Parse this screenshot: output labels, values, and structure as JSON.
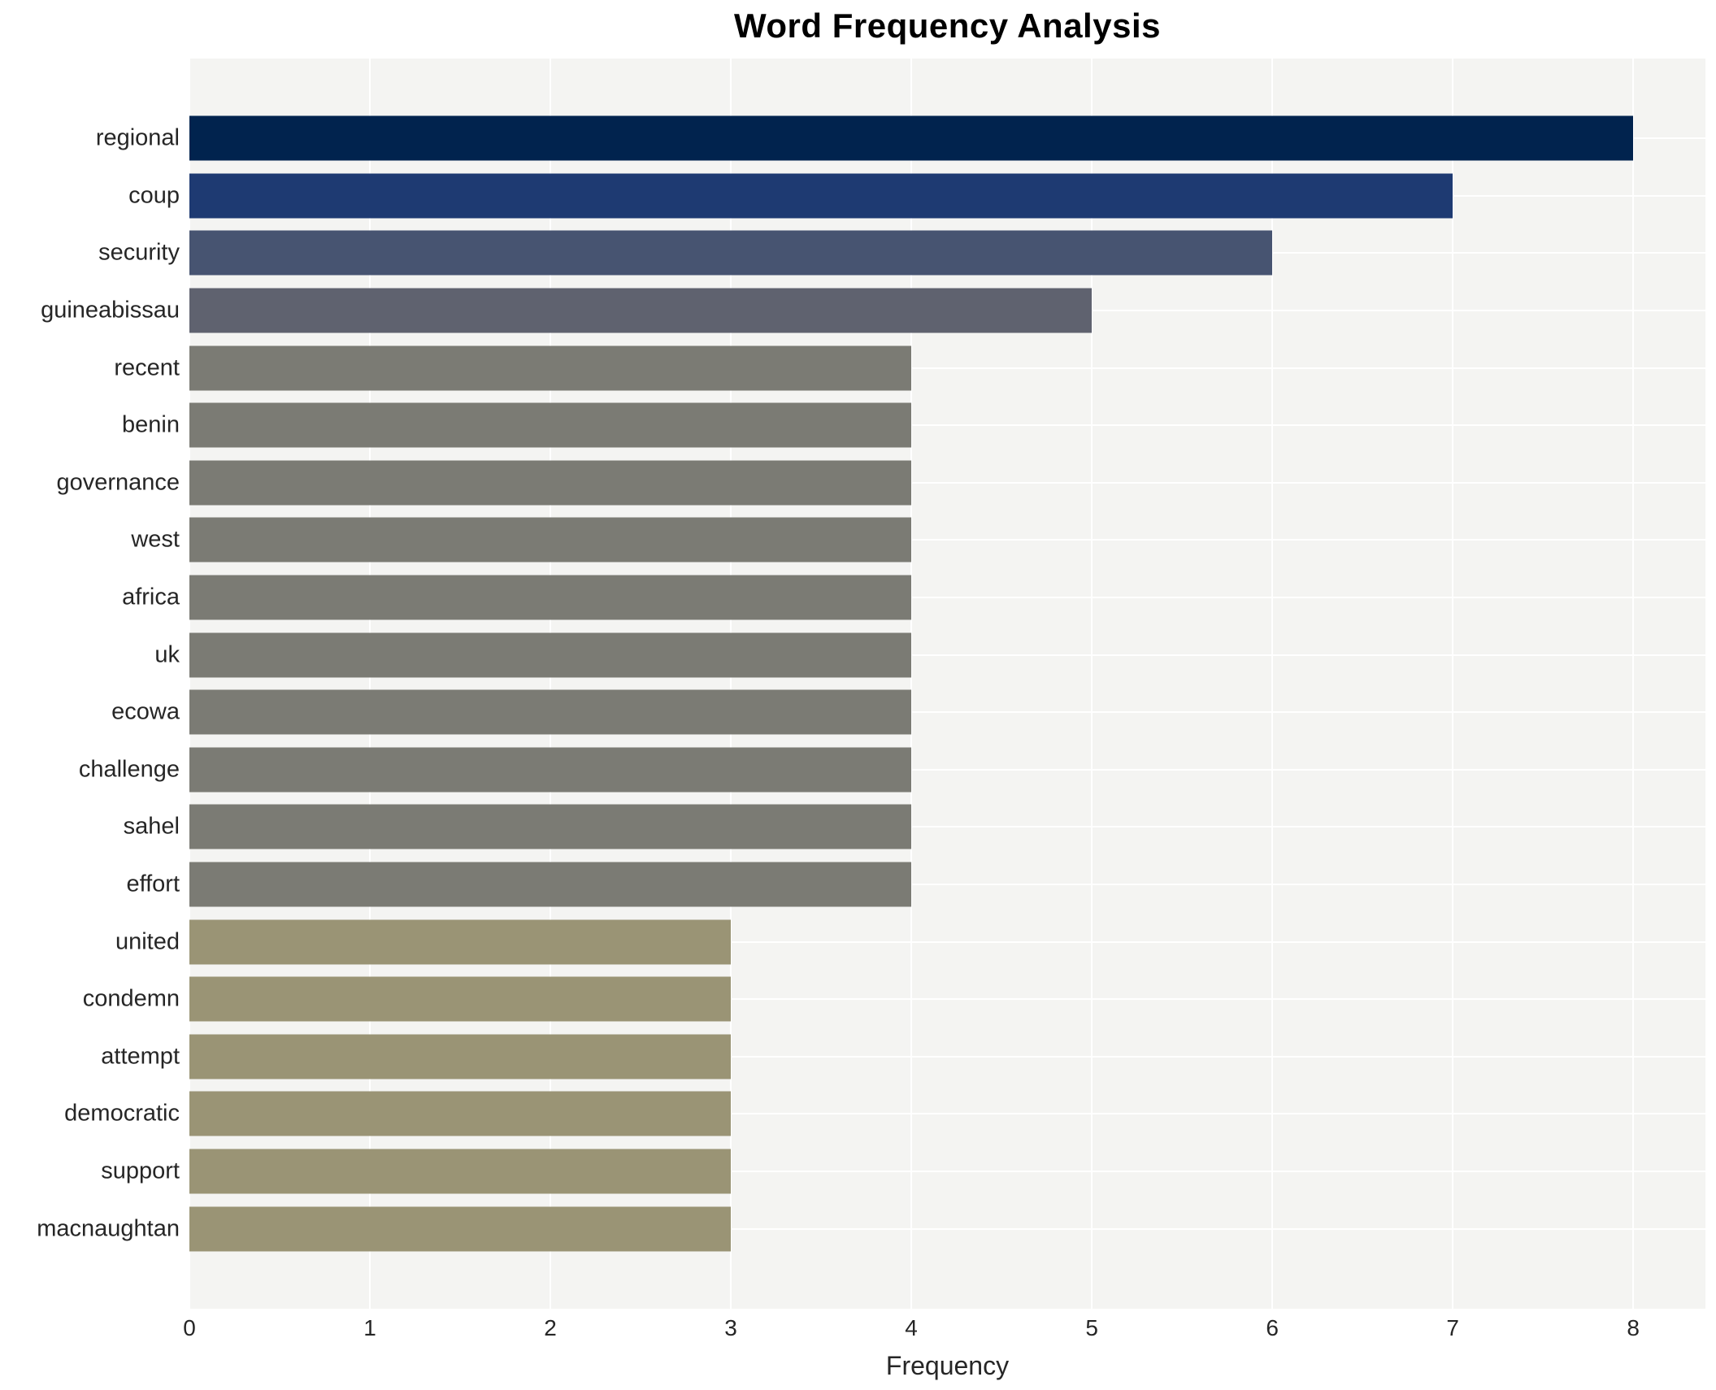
{
  "chart_data": {
    "type": "bar",
    "orientation": "horizontal",
    "title": "Word Frequency Analysis",
    "xlabel": "Frequency",
    "ylabel": "",
    "xlim": [
      0,
      8.4
    ],
    "xticks": [
      0,
      1,
      2,
      3,
      4,
      5,
      6,
      7,
      8
    ],
    "grid": "white vertical and horizontal gridlines on light-gray plot background",
    "legend": "none",
    "categories": [
      "regional",
      "coup",
      "security",
      "guineabissau",
      "recent",
      "benin",
      "governance",
      "west",
      "africa",
      "uk",
      "ecowa",
      "challenge",
      "sahel",
      "effort",
      "united",
      "condemn",
      "attempt",
      "democratic",
      "support",
      "macnaughtan"
    ],
    "values": [
      8,
      7,
      6,
      5,
      4,
      4,
      4,
      4,
      4,
      4,
      4,
      4,
      4,
      4,
      3,
      3,
      3,
      3,
      3,
      3
    ],
    "bar_colors": [
      "#01234e",
      "#1e3a72",
      "#475471",
      "#5f626f",
      "#7b7b74",
      "#7b7b74",
      "#7b7b74",
      "#7b7b74",
      "#7b7b74",
      "#7b7b74",
      "#7b7b74",
      "#7b7b74",
      "#7b7b74",
      "#7b7b74",
      "#9a9475",
      "#9a9475",
      "#9a9475",
      "#9a9475",
      "#9a9475",
      "#9a9475"
    ],
    "colors": {
      "plot_background": "#f4f4f2",
      "gridline": "#ffffff",
      "value_8": "#01234e",
      "value_7": "#1e3a72",
      "value_6": "#475471",
      "value_5": "#5f626f",
      "value_4": "#7b7b74",
      "value_3": "#9a9475",
      "text": "#262626",
      "title_text": "#000000"
    }
  }
}
